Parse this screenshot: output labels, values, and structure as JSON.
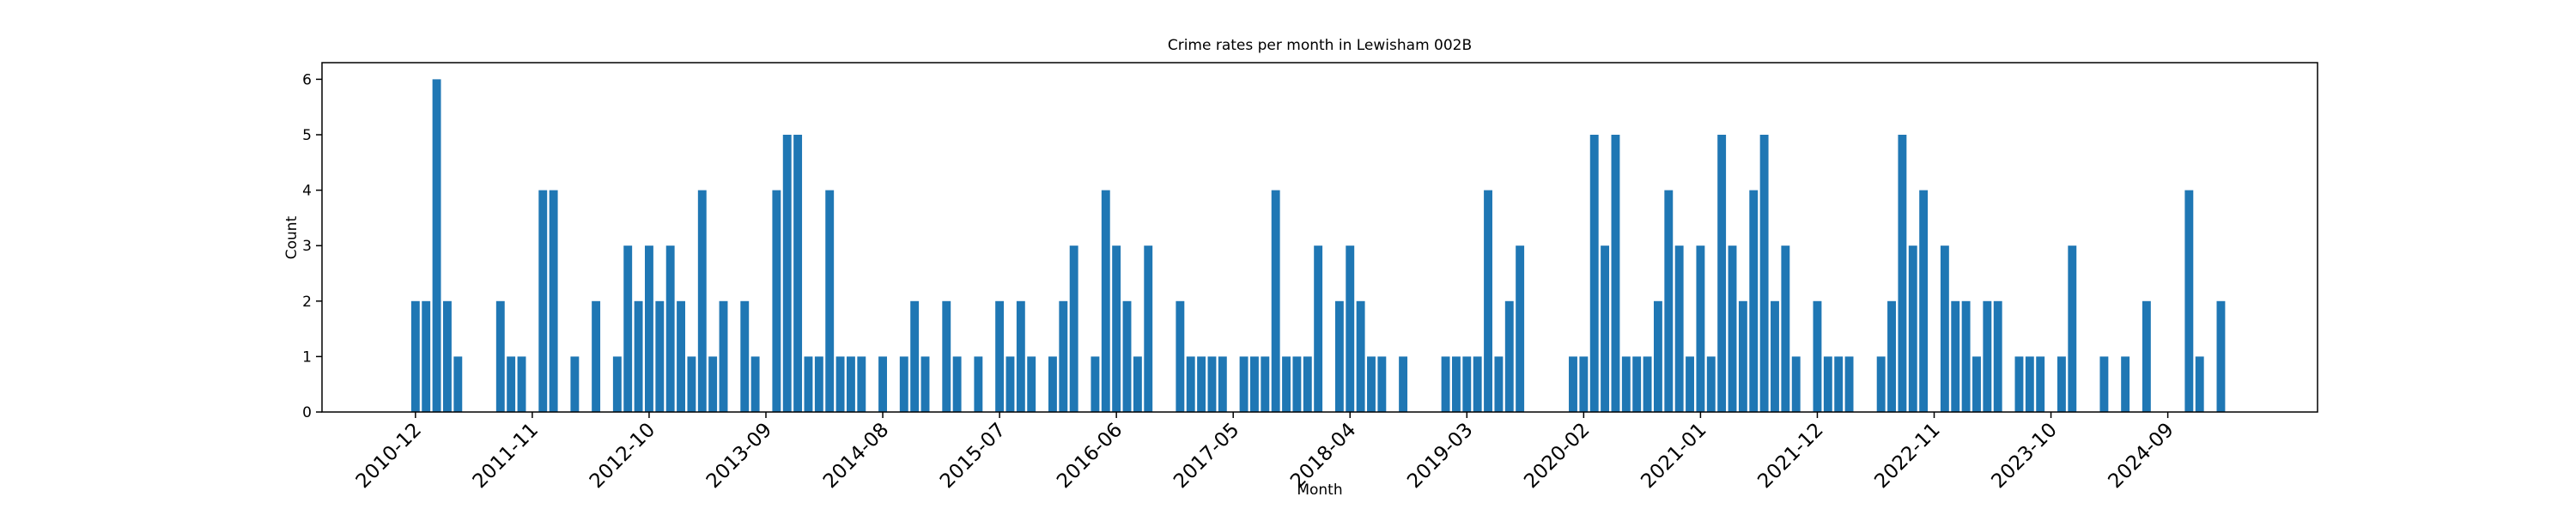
{
  "chart_data": {
    "type": "bar",
    "title": "Crime rates per month in Lewisham 002B",
    "x_label": "Month",
    "y_label": "Count",
    "color": "#1f77b4",
    "categories": [
      "2010-12",
      null,
      null,
      null,
      null,
      null,
      null,
      null,
      null,
      null,
      null,
      "2011-11",
      null,
      null,
      null,
      null,
      null,
      null,
      null,
      null,
      null,
      null,
      "2012-10",
      null,
      null,
      null,
      null,
      null,
      null,
      null,
      null,
      null,
      null,
      "2013-09",
      null,
      null,
      null,
      null,
      null,
      null,
      null,
      null,
      null,
      null,
      "2014-08",
      null,
      null,
      null,
      null,
      null,
      null,
      null,
      null,
      null,
      null,
      "2015-07",
      null,
      null,
      null,
      null,
      null,
      null,
      null,
      null,
      null,
      null,
      "2016-06",
      null,
      null,
      null,
      null,
      null,
      null,
      null,
      null,
      null,
      null,
      "2017-05",
      null,
      null,
      null,
      null,
      null,
      null,
      null,
      null,
      null,
      null,
      "2018-04",
      null,
      null,
      null,
      null,
      null,
      null,
      null,
      null,
      null,
      null,
      "2019-03",
      null,
      null,
      null,
      null,
      null,
      null,
      null,
      null,
      null,
      null,
      "2020-02",
      null,
      null,
      null,
      null,
      null,
      null,
      null,
      null,
      null,
      null,
      "2021-01",
      null,
      null,
      null,
      null,
      null,
      null,
      null,
      null,
      null,
      null,
      "2021-12",
      null,
      null,
      null,
      null,
      null,
      null,
      null,
      null,
      null,
      null,
      "2022-11",
      null,
      null,
      null,
      null,
      null,
      null,
      null,
      null,
      null,
      null,
      "2023-10",
      null,
      null,
      null,
      null,
      null,
      null,
      null,
      null,
      null,
      null,
      "2024-09",
      null,
      null,
      null,
      null,
      null
    ],
    "values": [
      2,
      2,
      6,
      2,
      1,
      0,
      0,
      0,
      2,
      1,
      1,
      0,
      4,
      4,
      0,
      1,
      0,
      2,
      0,
      1,
      3,
      2,
      3,
      2,
      3,
      2,
      1,
      4,
      1,
      2,
      0,
      2,
      1,
      0,
      4,
      5,
      5,
      1,
      1,
      4,
      1,
      1,
      1,
      0,
      1,
      0,
      1,
      2,
      1,
      0,
      2,
      1,
      0,
      1,
      0,
      2,
      1,
      2,
      1,
      0,
      1,
      2,
      3,
      0,
      1,
      4,
      3,
      2,
      1,
      3,
      0,
      0,
      2,
      1,
      1,
      1,
      1,
      0,
      1,
      1,
      1,
      4,
      1,
      1,
      1,
      3,
      0,
      2,
      3,
      2,
      1,
      1,
      0,
      1,
      0,
      0,
      0,
      1,
      1,
      1,
      1,
      4,
      1,
      2,
      3,
      0,
      0,
      0,
      0,
      1,
      1,
      5,
      3,
      5,
      1,
      1,
      1,
      2,
      4,
      3,
      1,
      3,
      1,
      5,
      3,
      2,
      4,
      5,
      2,
      3,
      1,
      0,
      2,
      1,
      1,
      1,
      0,
      0,
      1,
      2,
      5,
      3,
      4,
      0,
      3,
      2,
      2,
      1,
      2,
      2,
      0,
      1,
      1,
      1,
      0,
      1,
      3,
      0,
      0,
      1,
      0,
      1,
      0,
      2,
      0,
      0,
      0,
      4,
      1,
      0,
      2
    ],
    "ylim": [
      0,
      6.3
    ],
    "yticks": [
      0,
      1,
      2,
      3,
      4,
      5,
      6
    ]
  }
}
